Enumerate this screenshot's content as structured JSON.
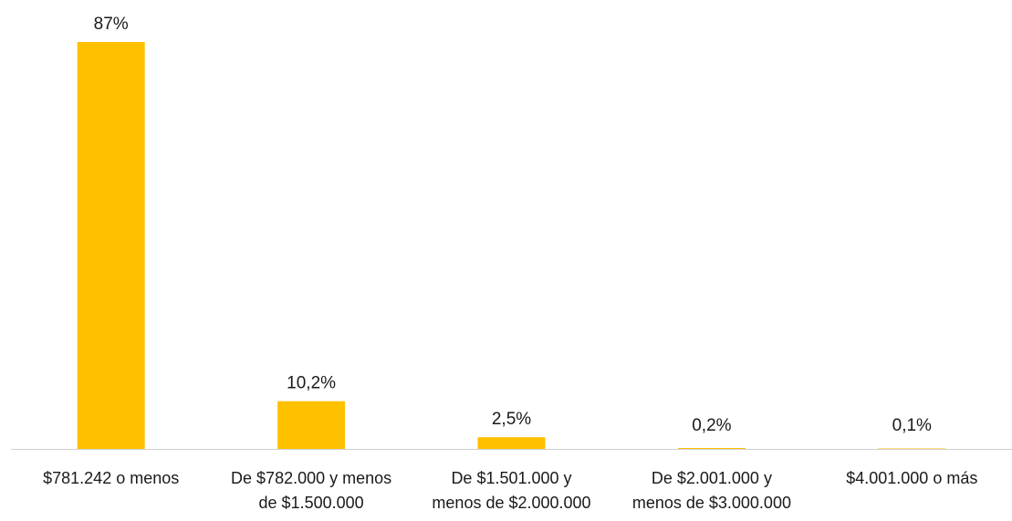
{
  "chart_data": {
    "type": "bar",
    "categories": [
      [
        "$781.242 o menos"
      ],
      [
        "De $782.000 y menos",
        "de $1.500.000"
      ],
      [
        "De $1.501.000 y",
        "menos de $2.000.000"
      ],
      [
        "De $2.001.000 y",
        "menos de $3.000.000"
      ],
      [
        "$4.001.000 o más"
      ]
    ],
    "values": [
      87,
      10.2,
      2.5,
      0.2,
      0.1
    ],
    "data_labels": [
      "87%",
      "10,2%",
      "2,5%",
      "0,2%",
      "0,1%"
    ],
    "ylim": [
      0,
      87
    ],
    "grid": false,
    "legend": "none",
    "colors": {
      "bar": "#FFC000",
      "axis": "#d0d0d0"
    }
  }
}
